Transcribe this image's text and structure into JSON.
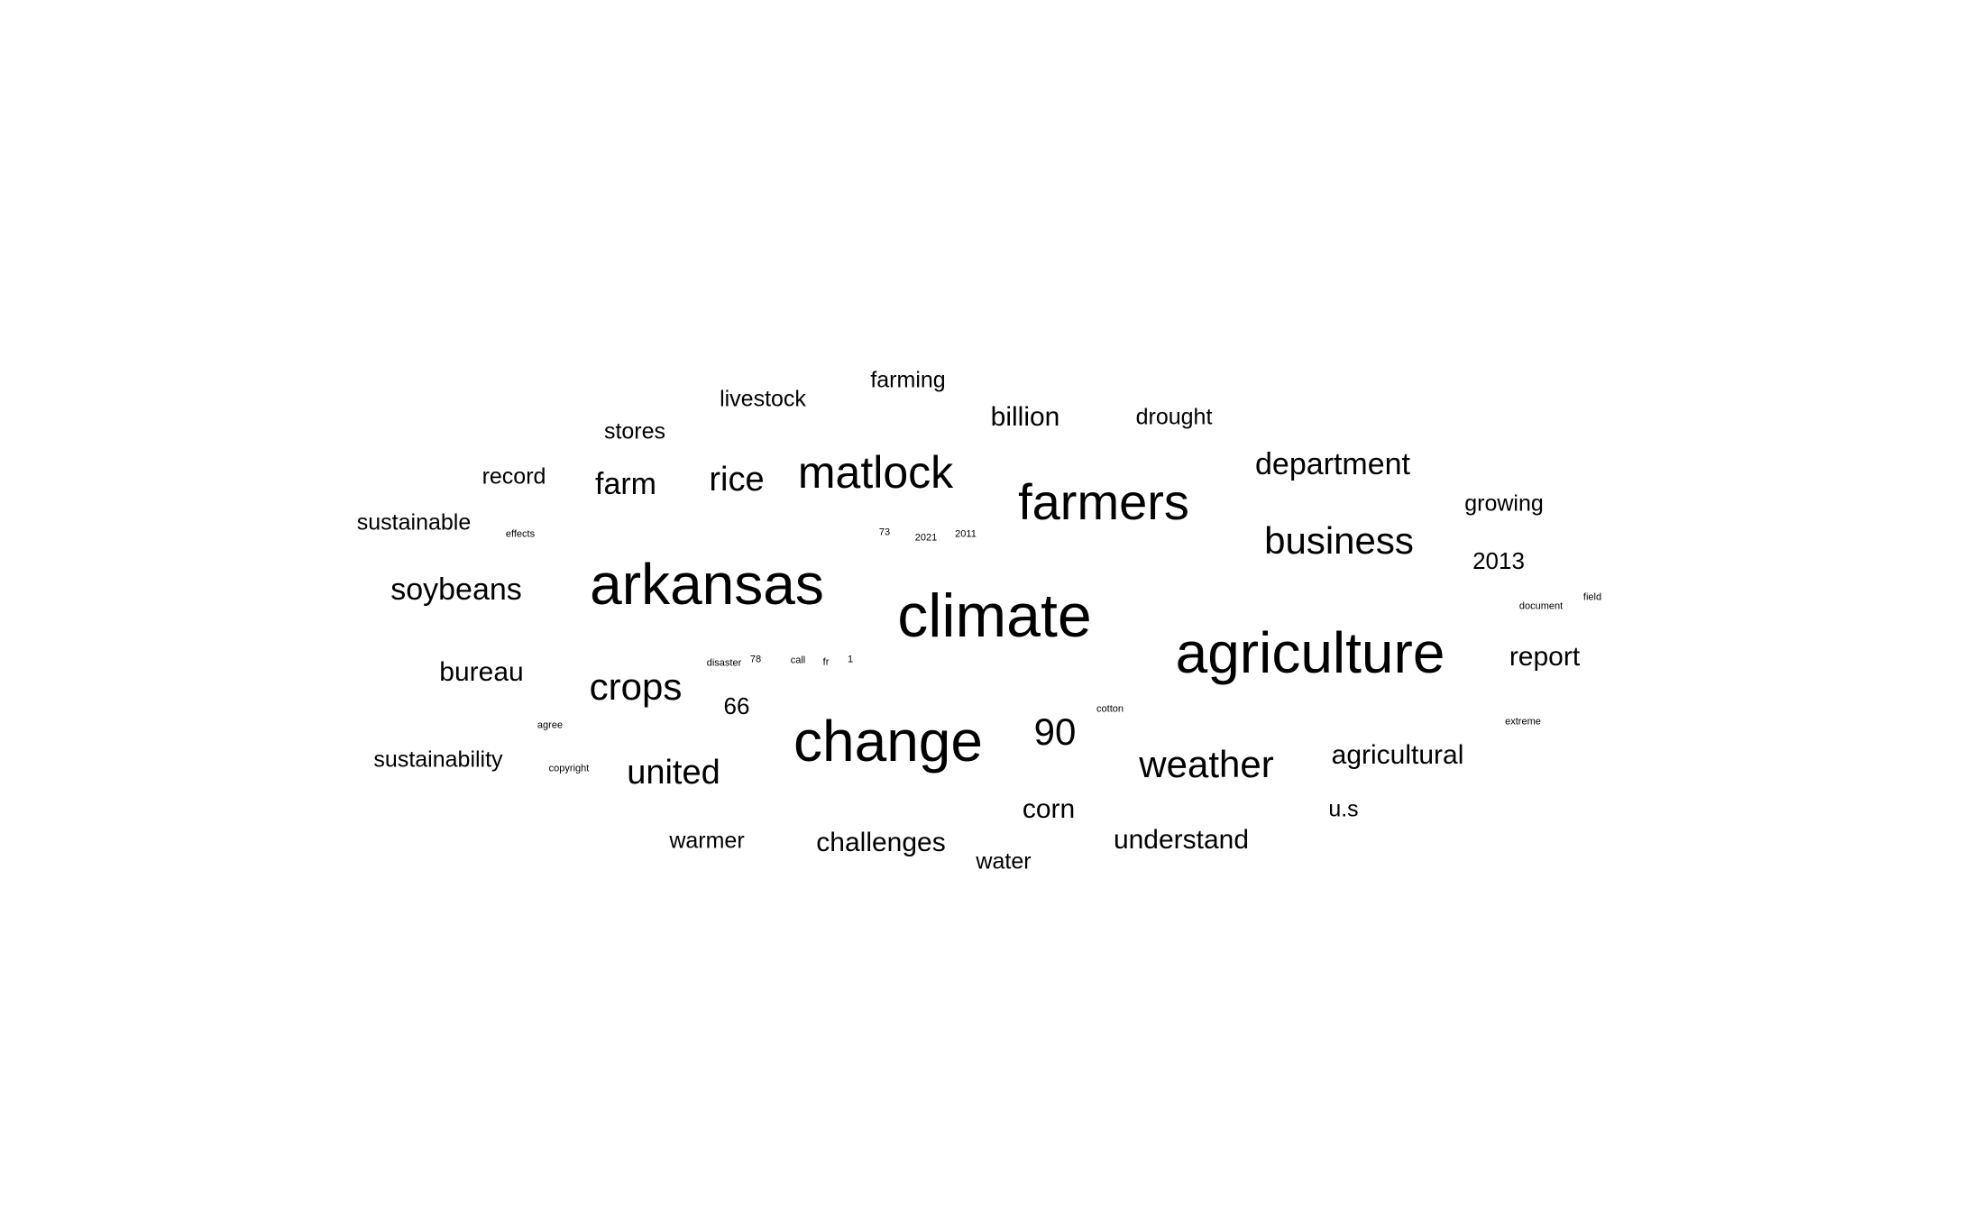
{
  "text_color": "#000000",
  "background_color": "#ffffff",
  "words": [
    {
      "text": "arkansas",
      "weight": 100
    },
    {
      "text": "climate",
      "weight": 100
    },
    {
      "text": "agriculture",
      "weight": 100
    },
    {
      "text": "change",
      "weight": 96
    },
    {
      "text": "farmers",
      "weight": 80
    },
    {
      "text": "matlock",
      "weight": 72
    },
    {
      "text": "business",
      "weight": 62
    },
    {
      "text": "weather",
      "weight": 60
    },
    {
      "text": "united",
      "weight": 56
    },
    {
      "text": "crops",
      "weight": 56
    },
    {
      "text": "90",
      "weight": 60
    },
    {
      "text": "rice",
      "weight": 56
    },
    {
      "text": "farm",
      "weight": 52
    },
    {
      "text": "department",
      "weight": 52
    },
    {
      "text": "soybeans",
      "weight": 50
    },
    {
      "text": "corn",
      "weight": 46
    },
    {
      "text": "challenges",
      "weight": 46
    },
    {
      "text": "understand",
      "weight": 46
    },
    {
      "text": "bureau",
      "weight": 46
    },
    {
      "text": "billion",
      "weight": 46
    },
    {
      "text": "agricultural",
      "weight": 46
    },
    {
      "text": "report",
      "weight": 46
    },
    {
      "text": "2013",
      "weight": 40
    },
    {
      "text": "66",
      "weight": 40
    },
    {
      "text": "farming",
      "weight": 38
    },
    {
      "text": "livestock",
      "weight": 38
    },
    {
      "text": "stores",
      "weight": 38
    },
    {
      "text": "record",
      "weight": 38
    },
    {
      "text": "sustainable",
      "weight": 38
    },
    {
      "text": "drought",
      "weight": 38
    },
    {
      "text": "growing",
      "weight": 38
    },
    {
      "text": "sustainability",
      "weight": 38
    },
    {
      "text": "warmer",
      "weight": 38
    },
    {
      "text": "water",
      "weight": 38
    },
    {
      "text": "u.s",
      "weight": 38
    },
    {
      "text": "effects",
      "weight": 12
    },
    {
      "text": "73",
      "weight": 12
    },
    {
      "text": "2021",
      "weight": 12
    },
    {
      "text": "2011",
      "weight": 12
    },
    {
      "text": "disaster",
      "weight": 12
    },
    {
      "text": "78",
      "weight": 12
    },
    {
      "text": "call",
      "weight": 12
    },
    {
      "text": "fr",
      "weight": 12
    },
    {
      "text": "1",
      "weight": 12
    },
    {
      "text": "document",
      "weight": 12
    },
    {
      "text": "field",
      "weight": 12
    },
    {
      "text": "cotton",
      "weight": 12
    },
    {
      "text": "agree",
      "weight": 12
    },
    {
      "text": "extreme",
      "weight": 12
    },
    {
      "text": "copyright",
      "weight": 12
    }
  ]
}
